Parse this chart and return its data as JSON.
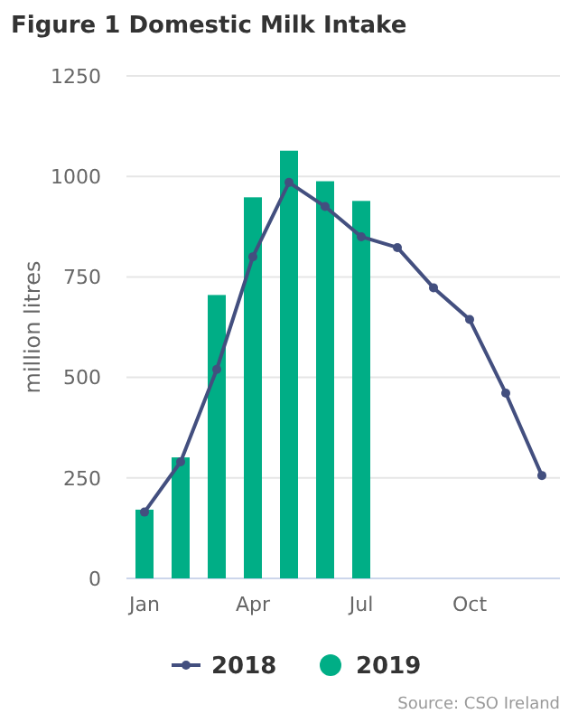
{
  "chart_data": {
    "type": "bar",
    "title": "Figure 1 Domestic Milk Intake",
    "ylabel": "million litres",
    "categories": [
      "Jan",
      null,
      null,
      "Apr",
      null,
      null,
      "Jul",
      null,
      null,
      "Oct",
      null,
      null
    ],
    "series": [
      {
        "name": "2018",
        "type": "line",
        "color": "#434f7f",
        "marker": "circle",
        "values": [
          165,
          290,
          520,
          800,
          985,
          925,
          850,
          823,
          723,
          644,
          461,
          256
        ]
      },
      {
        "name": "2019",
        "color": "#00ae86",
        "values": [
          171,
          301,
          705,
          948,
          1064,
          988,
          939,
          null,
          null,
          null,
          null,
          null
        ]
      }
    ],
    "ylim": [
      0,
      1250
    ],
    "yticks": [
      0,
      250,
      500,
      750,
      1000,
      1250
    ],
    "grid": "y",
    "legend": "bottom",
    "annotations": [
      "Source: CSO Ireland"
    ]
  }
}
